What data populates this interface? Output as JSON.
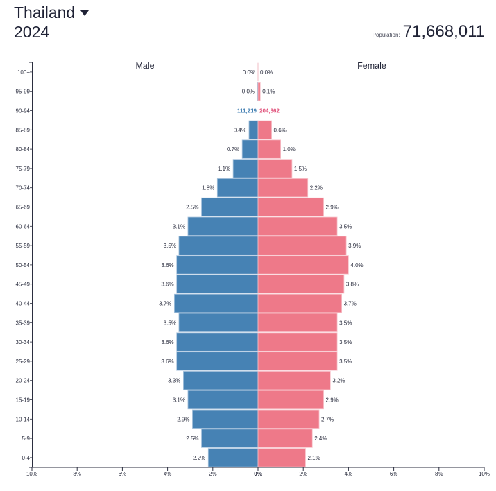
{
  "header": {
    "country": "Thailand",
    "year": "2024",
    "population_label": "Population:",
    "population_value": "71,668,011"
  },
  "colors": {
    "male": "#4682b4",
    "female": "#ee7989",
    "male_text": "#4682b4",
    "female_text": "#e0507a",
    "axis": "#2b2e3f"
  },
  "chart_data": {
    "type": "bar",
    "subtype": "population-pyramid",
    "title": "Thailand 2024",
    "population": 71668011,
    "series_labels": {
      "male": "Male",
      "female": "Female"
    },
    "categories": [
      "100+",
      "95-99",
      "90-94",
      "85-89",
      "80-84",
      "75-79",
      "70-74",
      "65-69",
      "60-64",
      "55-59",
      "50-54",
      "45-49",
      "40-44",
      "35-39",
      "30-34",
      "25-29",
      "20-24",
      "15-19",
      "10-14",
      "5-9",
      "0-4"
    ],
    "series": [
      {
        "name": "Male",
        "values": [
          0.0,
          0.03,
          0.16,
          0.4,
          0.7,
          1.1,
          1.8,
          2.5,
          3.1,
          3.5,
          3.6,
          3.6,
          3.7,
          3.5,
          3.6,
          3.6,
          3.3,
          3.1,
          2.9,
          2.5,
          2.2
        ]
      },
      {
        "name": "Female",
        "values": [
          0.0,
          0.1,
          0.29,
          0.6,
          1.0,
          1.5,
          2.2,
          2.9,
          3.5,
          3.9,
          4.0,
          3.8,
          3.7,
          3.5,
          3.5,
          3.5,
          3.2,
          2.9,
          2.7,
          2.4,
          2.1
        ]
      }
    ],
    "labels": {
      "male": [
        "0.0%",
        "0.0%",
        "111,219",
        "0.4%",
        "0.7%",
        "1.1%",
        "1.8%",
        "2.5%",
        "3.1%",
        "3.5%",
        "3.6%",
        "3.6%",
        "3.7%",
        "3.5%",
        "3.6%",
        "3.6%",
        "3.3%",
        "3.1%",
        "2.9%",
        "2.5%",
        "2.2%"
      ],
      "female": [
        "0.0%",
        "0.1%",
        "204,362",
        "0.6%",
        "1.0%",
        "1.5%",
        "2.2%",
        "2.9%",
        "3.5%",
        "3.9%",
        "4.0%",
        "3.8%",
        "3.7%",
        "3.5%",
        "3.5%",
        "3.5%",
        "3.2%",
        "2.9%",
        "2.7%",
        "2.4%",
        "2.1%"
      ]
    },
    "highlighted_row": "90-94",
    "xlabel": "",
    "ylabel": "",
    "xlim": [
      -10,
      10
    ],
    "x_ticks": [
      "10%",
      "8%",
      "6%",
      "4%",
      "2%",
      "0%",
      "2%",
      "4%",
      "6%",
      "8%",
      "10%"
    ],
    "grid": false,
    "legend_position": "top"
  }
}
